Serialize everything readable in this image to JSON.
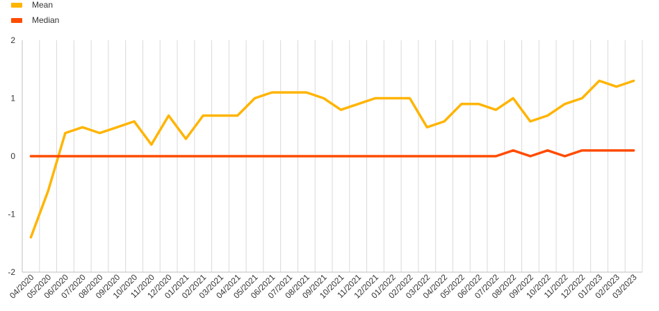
{
  "chart_data": {
    "type": "line",
    "title": "",
    "xlabel": "",
    "ylabel": "",
    "ylim": [
      -2,
      2
    ],
    "yticks": [
      -2,
      -1,
      0,
      1,
      2
    ],
    "grid": "vertical",
    "legend_position": "top-left",
    "categories": [
      "04/2020",
      "05/2020",
      "06/2020",
      "07/2020",
      "08/2020",
      "09/2020",
      "10/2020",
      "11/2020",
      "12/2020",
      "01/2021",
      "02/2021",
      "03/2021",
      "04/2021",
      "05/2021",
      "06/2021",
      "07/2021",
      "08/2021",
      "09/2021",
      "10/2021",
      "11/2021",
      "12/2021",
      "01/2022",
      "02/2022",
      "03/2022",
      "04/2022",
      "05/2022",
      "06/2022",
      "07/2022",
      "08/2022",
      "09/2022",
      "10/2022",
      "11/2022",
      "12/2022",
      "01/2023",
      "02/2023",
      "03/2023"
    ],
    "series": [
      {
        "name": "Mean",
        "color": "#FFB400",
        "values": [
          -1.4,
          -0.6,
          0.4,
          0.5,
          0.4,
          0.5,
          0.6,
          0.2,
          0.7,
          0.3,
          0.7,
          0.7,
          0.7,
          1.0,
          1.1,
          1.1,
          1.1,
          1.0,
          0.8,
          0.9,
          1.0,
          1.0,
          1.0,
          0.5,
          0.6,
          0.9,
          0.9,
          0.8,
          1.0,
          0.6,
          0.7,
          0.9,
          1.0,
          1.3,
          1.2,
          1.3
        ]
      },
      {
        "name": "Median",
        "color": "#FF4B00",
        "values": [
          0,
          0,
          0,
          0,
          0,
          0,
          0,
          0,
          0,
          0,
          0,
          0,
          0,
          0,
          0,
          0,
          0,
          0,
          0,
          0,
          0,
          0,
          0,
          0,
          0,
          0,
          0,
          0,
          0.1,
          0,
          0.1,
          0,
          0.1,
          0.1,
          0.1,
          0.1
        ]
      }
    ]
  }
}
